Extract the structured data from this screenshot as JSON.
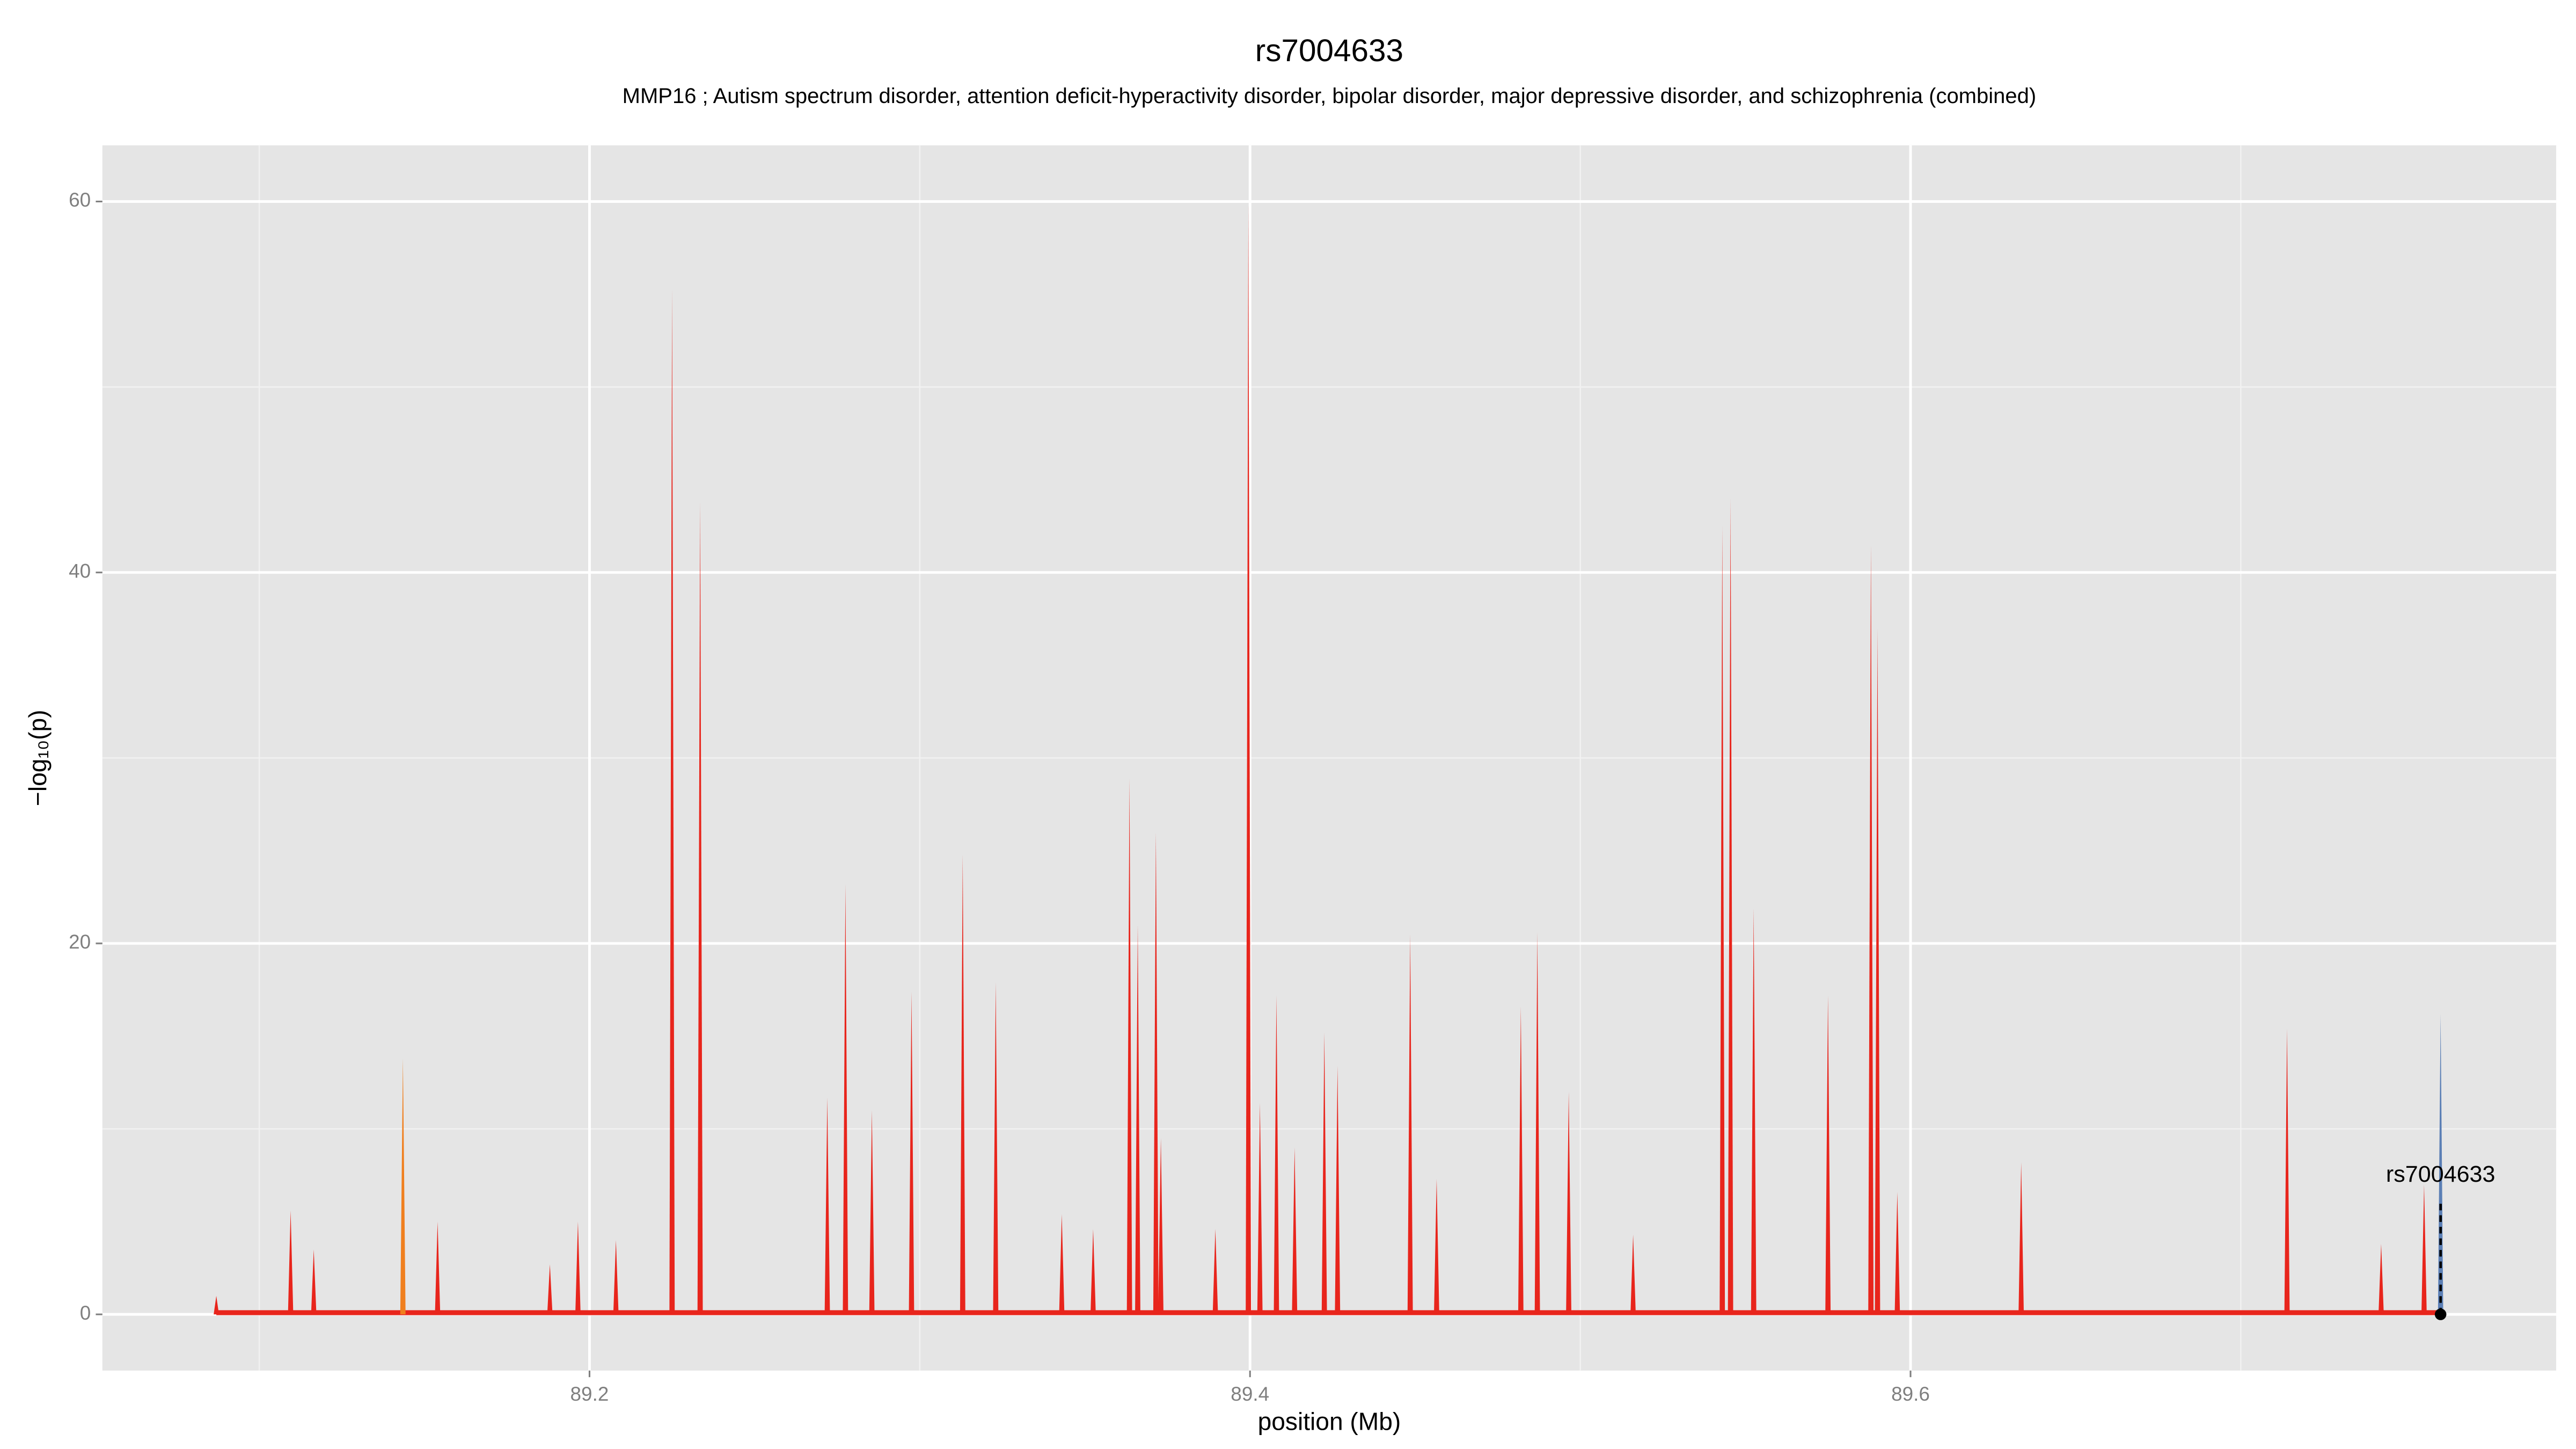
{
  "chart_data": {
    "type": "spike",
    "title": "rs7004633",
    "subtitle": "MMP16 ; Autism spectrum disorder, attention deficit-hyperactivity disorder, bipolar disorder, major depressive disorder, and schizophrenia (combined)",
    "x_label": "position (Mb)",
    "y_label": "−log₁₀(p)",
    "xlim": [
      89.0525,
      89.7955
    ],
    "ylim": [
      -3.03,
      63.03
    ],
    "xticks": [
      89.2,
      89.4,
      89.6
    ],
    "yticks": [
      0,
      20,
      40,
      60
    ],
    "x_minor_grid": [
      89.1,
      89.3,
      89.5,
      89.7
    ],
    "y_minor_grid": [
      10,
      30,
      50
    ],
    "grid": true,
    "series": [
      {
        "color": "#e8251c",
        "x": [
          89.087,
          89.1095,
          89.1165,
          89.154,
          89.188,
          89.1965,
          89.208,
          89.225,
          89.2335,
          89.272,
          89.2775,
          89.2855,
          89.2975,
          89.313,
          89.323,
          89.343,
          89.3525,
          89.3635,
          89.366,
          89.3715,
          89.373,
          89.3895,
          89.3995,
          89.403,
          89.408,
          89.4135,
          89.4225,
          89.4265,
          89.4485,
          89.4565,
          89.482,
          89.487,
          89.4965,
          89.516,
          89.543,
          89.5455,
          89.5525,
          89.575,
          89.588,
          89.59,
          89.596,
          89.6335,
          89.714,
          89.7425,
          89.7555,
          89.7605
        ],
        "values": [
          1,
          5.6,
          3.5,
          5,
          2.7,
          5,
          4,
          55.3,
          43.8,
          11.7,
          23.2,
          11,
          17.4,
          24.8,
          17.9,
          5.4,
          4.6,
          28.9,
          21,
          26,
          9.5,
          4.6,
          59.9,
          11.4,
          17.2,
          9,
          15.2,
          13.4,
          20.5,
          7.3,
          16.6,
          20.6,
          12,
          4.3,
          42.5,
          44,
          21.9,
          17.2,
          41.5,
          37,
          6.6,
          8.2,
          15.4,
          3.8,
          7,
          1
        ]
      },
      {
        "color": "#f07f1e",
        "x": [
          89.1435
        ],
        "values": [
          13.8
        ]
      },
      {
        "color": "#5b7fb5",
        "x": [
          89.7605
        ],
        "values": [
          16.2
        ]
      }
    ],
    "annotation": {
      "text": "rs7004633",
      "x": 89.7605,
      "y": 0
    }
  }
}
